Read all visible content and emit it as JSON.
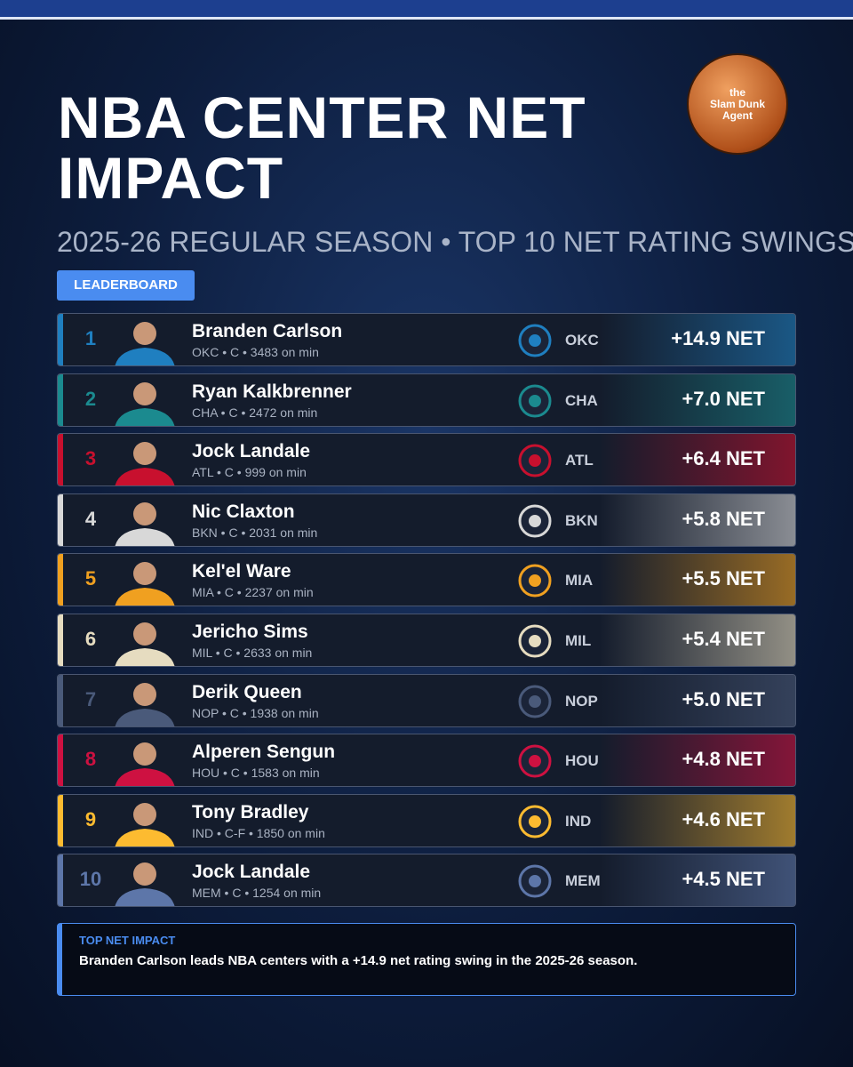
{
  "header": {
    "title": "NBA CENTER NET IMPACT",
    "subtitle": "2025-26 REGULAR SEASON • TOP 10 NET RATING SWINGS",
    "badge": "LEADERBOARD",
    "logo": [
      "the",
      "Slam Dunk",
      "Agent"
    ]
  },
  "rows": [
    {
      "rank": "1",
      "name": "Branden Carlson",
      "meta": "OKC • C • 3483 on min",
      "team": "OKC",
      "net": "+14.9 NET",
      "color": "#1f7fc0"
    },
    {
      "rank": "2",
      "name": "Ryan Kalkbrenner",
      "meta": "CHA • C • 2472 on min",
      "team": "CHA",
      "net": "+7.0 NET",
      "color": "#1b8a8f"
    },
    {
      "rank": "3",
      "name": "Jock Landale",
      "meta": "ATL • C • 999 on min",
      "team": "ATL",
      "net": "+6.4 NET",
      "color": "#c8102e"
    },
    {
      "rank": "4",
      "name": "Nic Claxton",
      "meta": "BKN • C • 2031 on min",
      "team": "BKN",
      "net": "+5.8 NET",
      "color": "#d8d8d8"
    },
    {
      "rank": "5",
      "name": "Kel'el Ware",
      "meta": "MIA • C • 2237 on min",
      "team": "MIA",
      "net": "+5.5 NET",
      "color": "#f0a020"
    },
    {
      "rank": "6",
      "name": "Jericho Sims",
      "meta": "MIL • C • 2633 on min",
      "team": "MIL",
      "net": "+5.4 NET",
      "color": "#e6dcc0"
    },
    {
      "rank": "7",
      "name": "Derik Queen",
      "meta": "NOP • C • 1938 on min",
      "team": "NOP",
      "net": "+5.0 NET",
      "color": "#4a5a7a"
    },
    {
      "rank": "8",
      "name": "Alperen Sengun",
      "meta": "HOU • C • 1583 on min",
      "team": "HOU",
      "net": "+4.8 NET",
      "color": "#ce1141"
    },
    {
      "rank": "9",
      "name": "Tony Bradley",
      "meta": "IND • C-F • 1850 on min",
      "team": "IND",
      "net": "+4.6 NET",
      "color": "#fdbb30"
    },
    {
      "rank": "10",
      "name": "Jock Landale",
      "meta": "MEM • C • 1254 on min",
      "team": "MEM",
      "net": "+4.5 NET",
      "color": "#5d76a9"
    }
  ],
  "footer": {
    "label": "TOP NET IMPACT",
    "text": "Branden Carlson leads NBA centers with a +14.9 net rating swing in the 2025-26 season."
  }
}
